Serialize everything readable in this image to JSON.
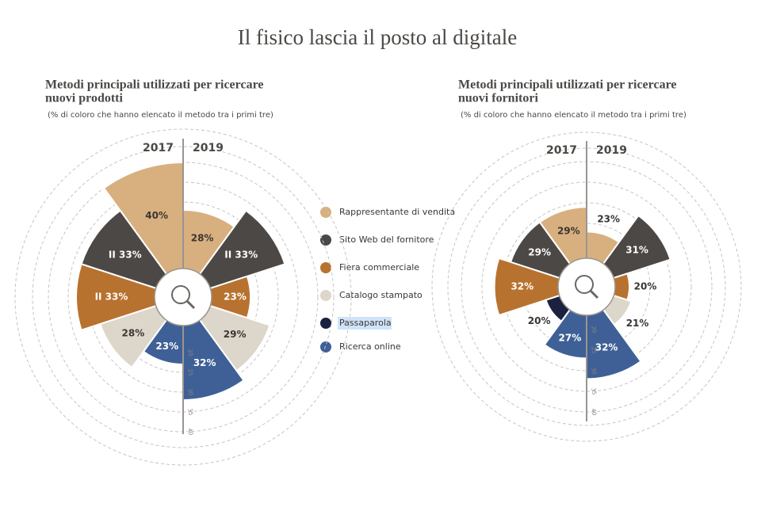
{
  "title": "Il fisico lascia il posto al digitale",
  "legend": {
    "categories": [
      "Rappresentante di vendita",
      "Sito Web del fornitore",
      "Fiera commerciale",
      "Catalogo stampato",
      "Passaparola",
      "Ricerca online"
    ],
    "colors": [
      "#d8b07f",
      "#4b4845",
      "#b8722f",
      "#ddd6ca",
      "#1b2240",
      "#3f6096"
    ]
  },
  "chart_data": [
    {
      "type": "rose",
      "title": [
        "Metodi principali utilizzati per ricercare",
        "nuovi prodotti"
      ],
      "subtitle": "(% di coloro che hanno elencato il metodo tra i primi tre)",
      "series": [
        {
          "name": "2017",
          "values": [
            40,
            33,
            33,
            28,
            null,
            23
          ],
          "value_labels": [
            "40%",
            "II 33%",
            "II 33%",
            "28%",
            null,
            "23%"
          ]
        },
        {
          "name": "2019",
          "values": [
            28,
            33,
            23,
            29,
            null,
            32
          ],
          "value_labels": [
            "28%",
            "II 33%",
            "23%",
            "29%",
            null,
            "32%"
          ]
        }
      ],
      "rlim": [
        20,
        40
      ],
      "rticks": [
        20,
        25,
        30,
        35,
        40
      ],
      "grid": true
    },
    {
      "type": "rose",
      "title": [
        "Metodi principali utilizzati per ricercare",
        "nuovi fornitori"
      ],
      "subtitle": "(% di coloro che hanno elencato il metodo tra i primi tre)",
      "series": [
        {
          "name": "2017",
          "values": [
            29,
            29,
            32,
            null,
            20,
            27
          ],
          "value_labels": [
            "29%",
            "29%",
            "32%",
            null,
            "20%",
            "27%"
          ]
        },
        {
          "name": "2019",
          "values": [
            23,
            31,
            20,
            21,
            null,
            32
          ],
          "value_labels": [
            "23%",
            "31%",
            "20%",
            "21%",
            null,
            "32%"
          ]
        }
      ],
      "rlim": [
        20,
        40
      ],
      "rticks": [
        20,
        25,
        30,
        35,
        40
      ],
      "grid": true
    }
  ]
}
